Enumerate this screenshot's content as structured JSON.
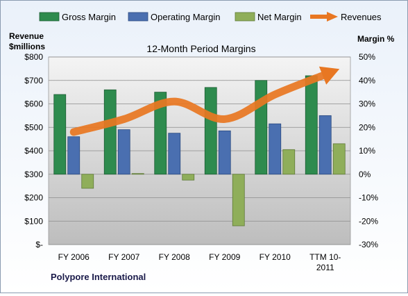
{
  "chart_data": {
    "type": "bar",
    "title": "12-Month Period Margins",
    "company": "Polypore International",
    "y_left_label_line1": "Revenue",
    "y_left_label_line2": "$millions",
    "y_right_label": "Margin %",
    "categories": [
      "FY 2006",
      "FY 2007",
      "FY 2008",
      "FY 2009",
      "FY 2010",
      "TTM 10-2011"
    ],
    "category_lines": [
      [
        "FY 2006"
      ],
      [
        "FY 2007"
      ],
      [
        "FY 2008"
      ],
      [
        "FY 2009"
      ],
      [
        "FY 2010"
      ],
      [
        "TTM 10-",
        "2011"
      ]
    ],
    "left_axis": {
      "min": 0,
      "max": 800,
      "step": 100,
      "tick_labels": [
        "$-",
        "$100",
        "$200",
        "$300",
        "$400",
        "$500",
        "$600",
        "$700",
        "$800"
      ]
    },
    "right_axis": {
      "min": -30,
      "max": 50,
      "step": 10,
      "tick_labels": [
        "-30%",
        "-20%",
        "-10%",
        "0%",
        "10%",
        "20%",
        "30%",
        "40%",
        "50%"
      ]
    },
    "series": [
      {
        "name": "Gross Margin",
        "type": "bar",
        "axis": "right",
        "color": "#2e8b4e",
        "values": [
          34,
          36,
          35,
          37,
          40,
          42
        ]
      },
      {
        "name": "Operating Margin",
        "type": "bar",
        "axis": "right",
        "color": "#4a6fb0",
        "values": [
          16,
          19,
          17.5,
          18.5,
          21.5,
          25
        ]
      },
      {
        "name": "Net Margin",
        "type": "bar",
        "axis": "right",
        "color": "#8fae5a",
        "values": [
          -6,
          0.3,
          -2.5,
          -22,
          10.5,
          13
        ]
      },
      {
        "name": "Revenues",
        "type": "line",
        "axis": "left",
        "color": "#e87722",
        "values": [
          480,
          535,
          610,
          535,
          640,
          725
        ]
      }
    ],
    "grid": true,
    "legend_position": "top"
  }
}
